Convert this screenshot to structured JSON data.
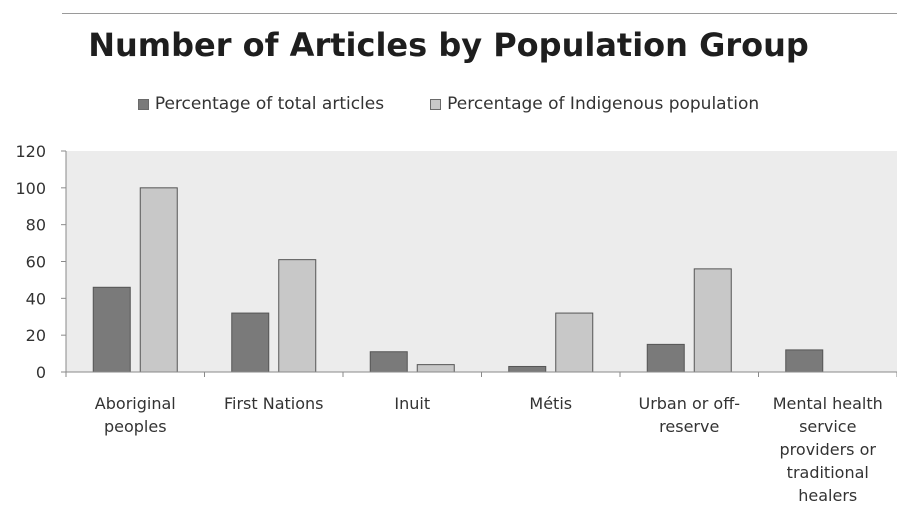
{
  "chart_data": {
    "type": "bar",
    "title": "Number of Articles by Population Group",
    "xlabel": "",
    "ylabel": "",
    "ylim": [
      0,
      120
    ],
    "yticks": [
      0,
      20,
      40,
      60,
      80,
      100,
      120
    ],
    "grid": false,
    "legend_position": "top",
    "categories": [
      [
        "Aboriginal",
        "peoples"
      ],
      [
        "First Nations"
      ],
      [
        "Inuit"
      ],
      [
        "Métis"
      ],
      [
        "Urban or off-",
        "reserve"
      ],
      [
        "Mental health",
        "service",
        "providers or",
        "traditional",
        "healers"
      ]
    ],
    "series": [
      {
        "name": "Percentage of total articles",
        "color": "#7a7a7a",
        "values": [
          46,
          32,
          11,
          3,
          15,
          12
        ]
      },
      {
        "name": "Percentage of Indigenous population",
        "color": "#c8c8c8",
        "values": [
          100,
          61,
          4,
          32,
          56,
          0
        ]
      }
    ]
  },
  "colors": {
    "plot_background": "#ececec",
    "axis": "#8a8a8a",
    "bar_border": "#555555"
  }
}
